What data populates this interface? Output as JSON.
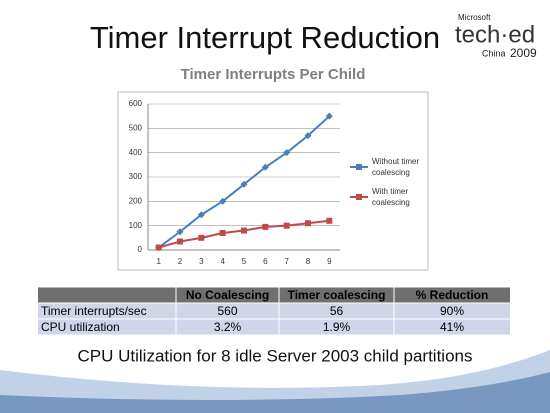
{
  "slide": {
    "title": "Timer Interrupt Reduction",
    "logo": {
      "brand": "Microsoft",
      "event": "tech·ed",
      "region": "China",
      "year": "2009"
    },
    "table": {
      "header": [
        "No Coalescing",
        "Timer coalescing",
        "% Reduction"
      ],
      "rows": [
        {
          "label": "Timer interrupts/sec",
          "cells": [
            "560",
            "56",
            "90%"
          ]
        },
        {
          "label": "CPU utilization",
          "cells": [
            "3.2%",
            "1.9%",
            "41%"
          ]
        }
      ]
    },
    "caption": "CPU Utilization for 8 idle Server 2003 child partitions"
  },
  "chart_data": {
    "type": "line",
    "title": "Timer Interrupts Per Child",
    "categories": [
      "1",
      "2",
      "3",
      "4",
      "5",
      "6",
      "7",
      "8",
      "9"
    ],
    "series": [
      {
        "name": "Without timer coalescing",
        "color": "#4a7ebb",
        "marker": "diamond",
        "values": [
          10,
          75,
          145,
          200,
          270,
          340,
          400,
          470,
          550
        ]
      },
      {
        "name": "With timer coalescing",
        "color": "#be4b48",
        "marker": "square",
        "values": [
          10,
          35,
          50,
          70,
          80,
          95,
          100,
          110,
          120
        ]
      }
    ],
    "ylim": [
      0,
      600
    ],
    "yticks": [
      0,
      100,
      200,
      300,
      400,
      500,
      600
    ],
    "grid": true,
    "legend": "right"
  }
}
